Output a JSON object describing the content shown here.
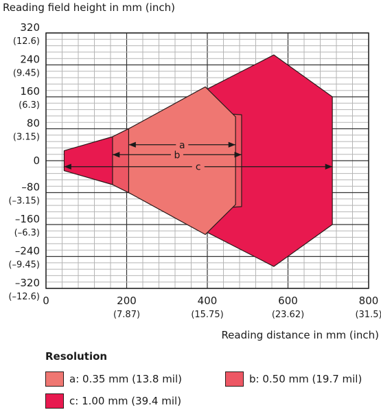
{
  "chart_data": {
    "type": "area",
    "xlabel": "Reading distance in mm (inch)",
    "ylabel": "Reading field height in mm (inch)",
    "xlim": [
      0,
      800
    ],
    "ylim": [
      -320,
      320
    ],
    "grid": true,
    "x_ticks": [
      {
        "value": 0,
        "label": "0",
        "sub": ""
      },
      {
        "value": 200,
        "label": "200",
        "sub": "(7.87)"
      },
      {
        "value": 400,
        "label": "400",
        "sub": "(15.75)"
      },
      {
        "value": 600,
        "label": "600",
        "sub": "(23.62)"
      },
      {
        "value": 800,
        "label": "800",
        "sub": "(31.5)"
      }
    ],
    "y_ticks": [
      {
        "value": 320,
        "label": "320",
        "sub": "(12.6)"
      },
      {
        "value": 240,
        "label": "240",
        "sub": "(9.45)"
      },
      {
        "value": 160,
        "label": "160",
        "sub": "(6.3)"
      },
      {
        "value": 80,
        "label": "80",
        "sub": "(3.15)"
      },
      {
        "value": 0,
        "label": "0",
        "sub": ""
      },
      {
        "value": -80,
        "label": "–80",
        "sub": "(–3.15)"
      },
      {
        "value": -160,
        "label": "–160",
        "sub": "(–6.3)"
      },
      {
        "value": -240,
        "label": "–240",
        "sub": "(–9.45)"
      },
      {
        "value": -320,
        "label": "–320",
        "sub": "(–12.6)"
      }
    ],
    "legend_title": "Resolution",
    "series": [
      {
        "id": "c",
        "name": "c: 1.00 mm (39.4 mil)",
        "color": "#e8194f",
        "polygon": [
          [
            45,
            25
          ],
          [
            165,
            60
          ],
          [
            300,
            128
          ],
          [
            565,
            265
          ],
          [
            710,
            160
          ],
          [
            710,
            -160
          ],
          [
            565,
            -265
          ],
          [
            300,
            -128
          ],
          [
            165,
            -60
          ],
          [
            45,
            -25
          ]
        ],
        "range": [
          45,
          710
        ]
      },
      {
        "id": "b",
        "name": "b: 0.50 mm (19.7 mil)",
        "color": "#ed5764",
        "polygon": [
          [
            165,
            60
          ],
          [
            300,
            128
          ],
          [
            485,
            115
          ],
          [
            485,
            -115
          ],
          [
            300,
            -128
          ],
          [
            165,
            -60
          ]
        ],
        "range": [
          165,
          485
        ]
      },
      {
        "id": "a",
        "name": "a: 0.35 mm (13.8 mil)",
        "color": "#ef7772",
        "polygon": [
          [
            205,
            80
          ],
          [
            395,
            185
          ],
          [
            470,
            110
          ],
          [
            470,
            -110
          ],
          [
            395,
            -185
          ],
          [
            205,
            -80
          ]
        ],
        "range": [
          205,
          470
        ]
      }
    ],
    "annotations": [
      {
        "label": "a",
        "from": 205,
        "to": 470,
        "y": 40
      },
      {
        "label": "b",
        "from": 165,
        "to": 485,
        "y": 15
      },
      {
        "label": "c",
        "from": 45,
        "to": 710,
        "y": -15
      }
    ]
  }
}
